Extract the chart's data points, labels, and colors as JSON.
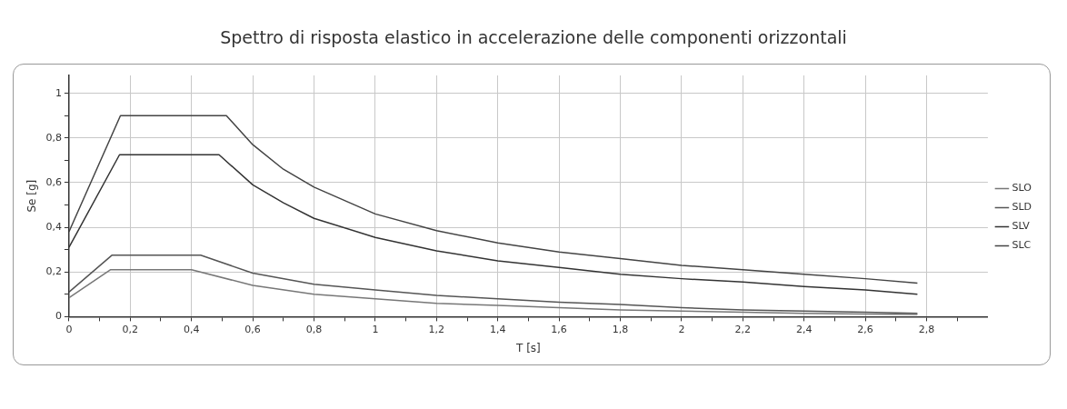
{
  "chart_data": {
    "type": "line",
    "title": "Spettro di risposta elastico in accelerazione delle componenti orizzontali",
    "xlabel": "T [s]",
    "ylabel": "Se [g]",
    "series": [
      {
        "name": "SLO",
        "color": "#777777",
        "x": [
          0,
          0.135,
          0.4,
          0.6,
          0.8,
          1.0,
          1.2,
          1.4,
          1.6,
          1.8,
          2.0,
          2.2,
          2.4,
          2.6,
          2.77
        ],
        "values": [
          0.085,
          0.21,
          0.21,
          0.14,
          0.1,
          0.08,
          0.06,
          0.05,
          0.04,
          0.03,
          0.025,
          0.02,
          0.015,
          0.012,
          0.01
        ]
      },
      {
        "name": "SLD",
        "color": "#555555",
        "x": [
          0,
          0.14,
          0.43,
          0.6,
          0.8,
          1.0,
          1.2,
          1.4,
          1.6,
          1.8,
          2.0,
          2.2,
          2.4,
          2.6,
          2.77
        ],
        "values": [
          0.11,
          0.275,
          0.275,
          0.195,
          0.145,
          0.12,
          0.095,
          0.08,
          0.065,
          0.055,
          0.04,
          0.03,
          0.025,
          0.02,
          0.015
        ]
      },
      {
        "name": "SLV",
        "color": "#333333",
        "x": [
          0,
          0.165,
          0.49,
          0.6,
          0.7,
          0.8,
          1.0,
          1.2,
          1.4,
          1.6,
          1.8,
          2.0,
          2.2,
          2.4,
          2.6,
          2.77
        ],
        "values": [
          0.31,
          0.725,
          0.725,
          0.59,
          0.51,
          0.44,
          0.355,
          0.295,
          0.25,
          0.22,
          0.19,
          0.17,
          0.155,
          0.135,
          0.12,
          0.1
        ]
      },
      {
        "name": "SLC",
        "color": "#444444",
        "x": [
          0,
          0.168,
          0.514,
          0.6,
          0.7,
          0.8,
          1.0,
          1.2,
          1.4,
          1.6,
          1.8,
          2.0,
          2.2,
          2.4,
          2.6,
          2.77
        ],
        "values": [
          0.38,
          0.9,
          0.9,
          0.77,
          0.66,
          0.58,
          0.46,
          0.385,
          0.33,
          0.29,
          0.26,
          0.23,
          0.21,
          0.19,
          0.17,
          0.15
        ]
      }
    ],
    "xlim": [
      0,
      3.0
    ],
    "xticks": [
      0,
      {
        "value": 0.1,
        "label": null
      },
      {
        "value": 0.2,
        "label": "0,2"
      },
      {
        "value": 0.3,
        "label": null
      },
      {
        "value": 0.4,
        "label": "0,4"
      },
      {
        "value": 0.5,
        "label": null
      },
      {
        "value": 0.6,
        "label": "0,6"
      },
      {
        "value": 0.7,
        "label": null
      },
      {
        "value": 0.8,
        "label": "0,8"
      },
      {
        "value": 0.9,
        "label": null
      },
      1,
      {
        "value": 1.1,
        "label": null
      },
      {
        "value": 1.2,
        "label": "1,2"
      },
      {
        "value": 1.3,
        "label": null
      },
      {
        "value": 1.4,
        "label": "1,4"
      },
      {
        "value": 1.5,
        "label": null
      },
      {
        "value": 1.6,
        "label": "1,6"
      },
      {
        "value": 1.7,
        "label": null
      },
      {
        "value": 1.8,
        "label": "1,8"
      },
      {
        "value": 1.9,
        "label": null
      },
      2,
      {
        "value": 2.1,
        "label": null
      },
      {
        "value": 2.2,
        "label": "2,2"
      },
      {
        "value": 2.3,
        "label": null
      },
      {
        "value": 2.4,
        "label": "2,4"
      },
      {
        "value": 2.5,
        "label": null
      },
      {
        "value": 2.6,
        "label": "2,6"
      },
      {
        "value": 2.7,
        "label": null
      },
      {
        "value": 2.8,
        "label": "2,8"
      },
      {
        "value": 2.9,
        "label": null
      }
    ],
    "ylim": [
      0,
      1.08
    ],
    "yticks": [
      0,
      {
        "value": 0.1,
        "label": null
      },
      {
        "value": 0.2,
        "label": "0,2"
      },
      {
        "value": 0.3,
        "label": null
      },
      {
        "value": 0.4,
        "label": "0,4"
      },
      {
        "value": 0.5,
        "label": null
      },
      {
        "value": 0.6,
        "label": "0,6"
      },
      {
        "value": 0.7,
        "label": null
      },
      {
        "value": 0.8,
        "label": "0,8"
      },
      {
        "value": 0.9,
        "label": null
      },
      1
    ],
    "grid": true,
    "legend": "right",
    "marker": "none",
    "line_style": "solid"
  }
}
